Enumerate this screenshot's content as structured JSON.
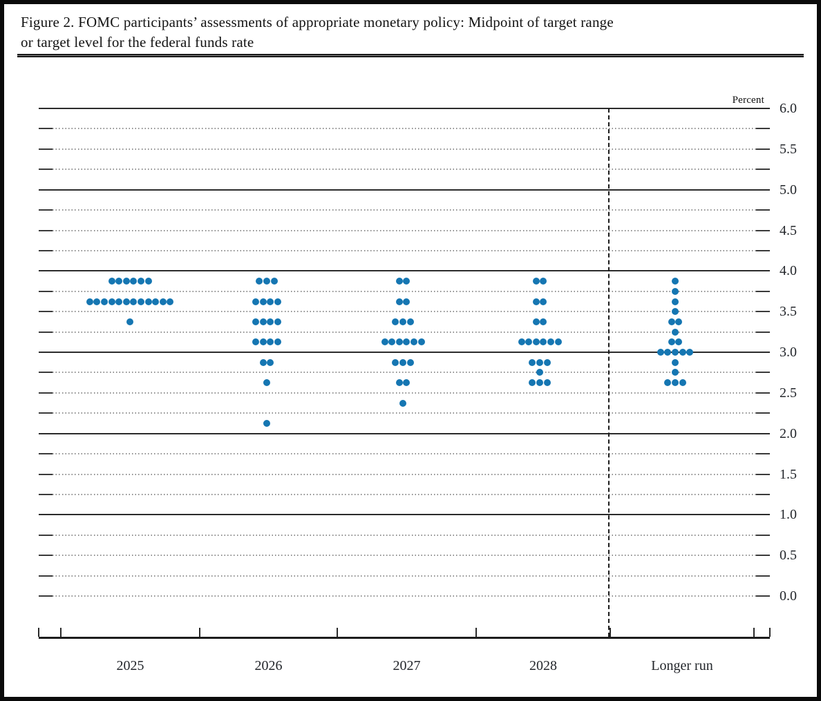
{
  "figure": {
    "title_line1": "Figure 2. FOMC participants’ assessments of appropriate monetary policy: Midpoint of target range",
    "title_line2": "or target level for the federal funds rate"
  },
  "chart_data": {
    "type": "scatter",
    "title": "Figure 2. FOMC participants’ assessments of appropriate monetary policy: Midpoint of target range or target level for the federal funds rate",
    "unit_label": "Percent",
    "categories": [
      "2025",
      "2026",
      "2027",
      "2028",
      "Longer run"
    ],
    "ylim": [
      0.0,
      6.0
    ],
    "y_tick_step_labels": 0.5,
    "y_tick_labels": [
      "6.0",
      "5.5",
      "5.0",
      "4.5",
      "4.0",
      "3.5",
      "3.0",
      "2.5",
      "2.0",
      "1.5",
      "1.0",
      "0.5",
      "0.0"
    ],
    "gridline_step": 0.25,
    "solid_gridlines_at_integers": true,
    "legend": "none",
    "separator_before_category": "Longer run",
    "dot_color": "#1576b2",
    "series": [
      {
        "category": "2025",
        "dots": [
          {
            "rate": 3.875,
            "count": 6
          },
          {
            "rate": 3.625,
            "count": 12
          },
          {
            "rate": 3.375,
            "count": 1
          }
        ]
      },
      {
        "category": "2026",
        "dots": [
          {
            "rate": 3.875,
            "count": 3
          },
          {
            "rate": 3.625,
            "count": 4
          },
          {
            "rate": 3.375,
            "count": 4
          },
          {
            "rate": 3.125,
            "count": 4
          },
          {
            "rate": 2.875,
            "count": 2
          },
          {
            "rate": 2.625,
            "count": 1
          },
          {
            "rate": 2.125,
            "count": 1
          }
        ]
      },
      {
        "category": "2027",
        "dots": [
          {
            "rate": 3.875,
            "count": 2
          },
          {
            "rate": 3.625,
            "count": 2
          },
          {
            "rate": 3.375,
            "count": 3
          },
          {
            "rate": 3.125,
            "count": 6
          },
          {
            "rate": 2.875,
            "count": 3
          },
          {
            "rate": 2.625,
            "count": 2
          },
          {
            "rate": 2.375,
            "count": 1
          }
        ]
      },
      {
        "category": "2028",
        "dots": [
          {
            "rate": 3.875,
            "count": 2
          },
          {
            "rate": 3.625,
            "count": 2
          },
          {
            "rate": 3.375,
            "count": 2
          },
          {
            "rate": 3.125,
            "count": 6
          },
          {
            "rate": 2.875,
            "count": 3
          },
          {
            "rate": 2.75,
            "count": 1
          },
          {
            "rate": 2.625,
            "count": 3
          }
        ]
      },
      {
        "category": "Longer run",
        "dots": [
          {
            "rate": 3.875,
            "count": 1
          },
          {
            "rate": 3.75,
            "count": 1
          },
          {
            "rate": 3.625,
            "count": 1
          },
          {
            "rate": 3.5,
            "count": 1
          },
          {
            "rate": 3.375,
            "count": 2
          },
          {
            "rate": 3.25,
            "count": 1
          },
          {
            "rate": 3.125,
            "count": 2
          },
          {
            "rate": 3.0,
            "count": 5
          },
          {
            "rate": 2.875,
            "count": 1
          },
          {
            "rate": 2.75,
            "count": 1
          },
          {
            "rate": 2.625,
            "count": 3
          }
        ]
      }
    ]
  }
}
